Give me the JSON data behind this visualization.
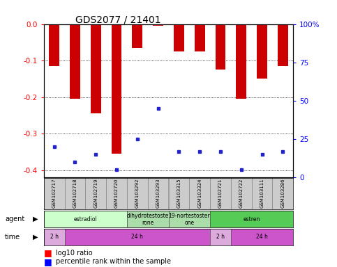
{
  "title": "GDS2077 / 21401",
  "samples": [
    "GSM102717",
    "GSM102718",
    "GSM102719",
    "GSM102720",
    "GSM103292",
    "GSM103293",
    "GSM103315",
    "GSM103324",
    "GSM102721",
    "GSM102722",
    "GSM103111",
    "GSM103286"
  ],
  "log10_ratio": [
    -0.115,
    -0.205,
    -0.245,
    -0.355,
    -0.065,
    -0.005,
    -0.075,
    -0.075,
    -0.125,
    -0.205,
    -0.15,
    -0.115
  ],
  "percentile_rank": [
    20,
    10,
    15,
    5,
    25,
    45,
    17,
    17,
    17,
    5,
    15,
    17
  ],
  "bar_color": "#cc0000",
  "blue_color": "#2222cc",
  "ylim_left": [
    -0.42,
    0.0
  ],
  "ylim_right": [
    0,
    100
  ],
  "yticks_left": [
    0.0,
    -0.1,
    -0.2,
    -0.3,
    -0.4
  ],
  "yticks_right": [
    0,
    25,
    50,
    75,
    100
  ],
  "ytick_labels_right": [
    "0",
    "25",
    "50",
    "75",
    "100%"
  ],
  "agent_groups": [
    {
      "label": "estradiol",
      "start": 0,
      "end": 4,
      "color": "#ccffcc"
    },
    {
      "label": "dihydrotestoste\nrone",
      "start": 4,
      "end": 6,
      "color": "#aaddaa"
    },
    {
      "label": "19-nortestoster\none",
      "start": 6,
      "end": 8,
      "color": "#aaddaa"
    },
    {
      "label": "estren",
      "start": 8,
      "end": 12,
      "color": "#55cc55"
    }
  ],
  "time_groups": [
    {
      "label": "2 h",
      "start": 0,
      "end": 1,
      "color": "#ddaadd"
    },
    {
      "label": "24 h",
      "start": 1,
      "end": 8,
      "color": "#cc55cc"
    },
    {
      "label": "2 h",
      "start": 8,
      "end": 9,
      "color": "#ddaadd"
    },
    {
      "label": "24 h",
      "start": 9,
      "end": 12,
      "color": "#cc55cc"
    }
  ],
  "legend_red_label": "log10 ratio",
  "legend_blue_label": "percentile rank within the sample",
  "bar_width": 0.5,
  "background_color": "#ffffff",
  "plot_bg": "#ffffff",
  "agent_label": "agent",
  "time_label": "time"
}
